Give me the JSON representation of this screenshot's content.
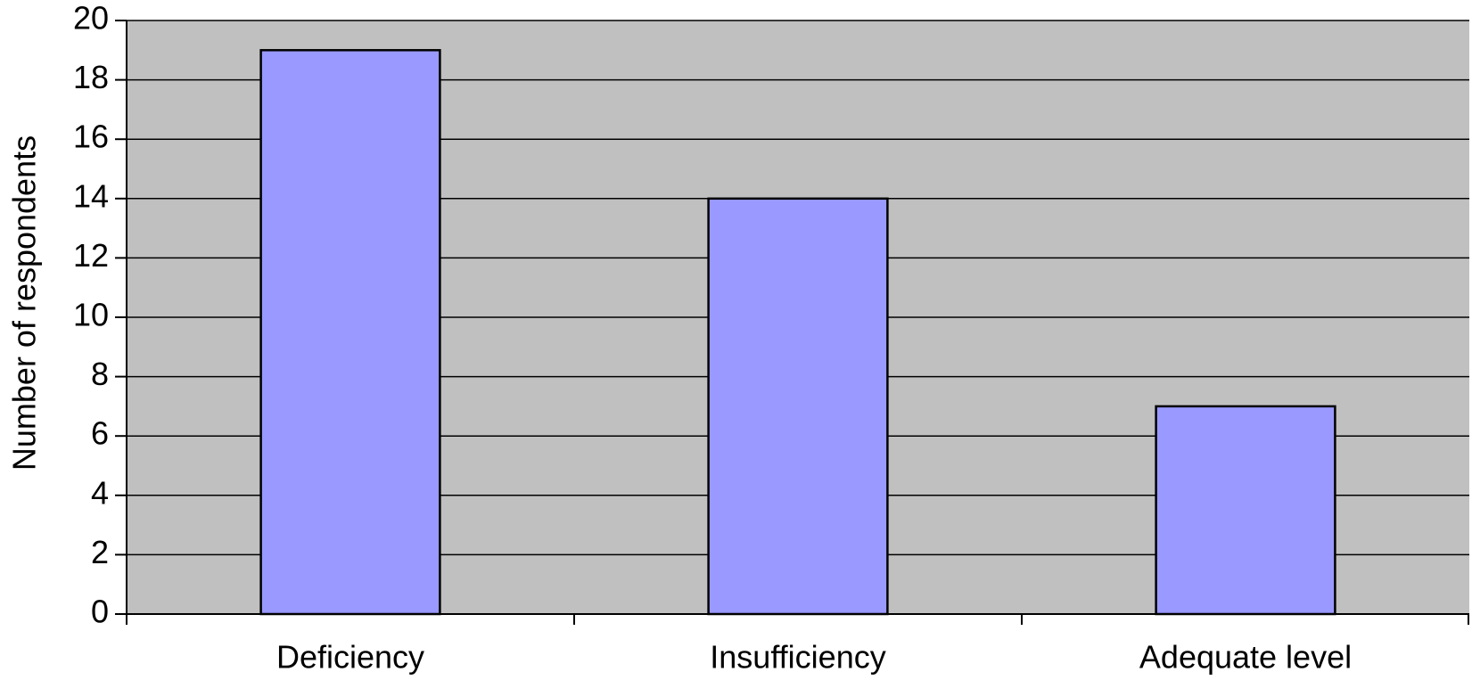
{
  "chart_data": {
    "type": "bar",
    "y_label": "Number of respondents",
    "categories": [
      "Deficiency",
      "Insufficiency",
      "Adequate level"
    ],
    "values": [
      19,
      14,
      7
    ],
    "color": "#9999ff",
    "ylim": [
      0,
      20
    ],
    "yticks": [
      0,
      2,
      4,
      6,
      8,
      10,
      12,
      14,
      16,
      18,
      20
    ],
    "grid": true
  }
}
